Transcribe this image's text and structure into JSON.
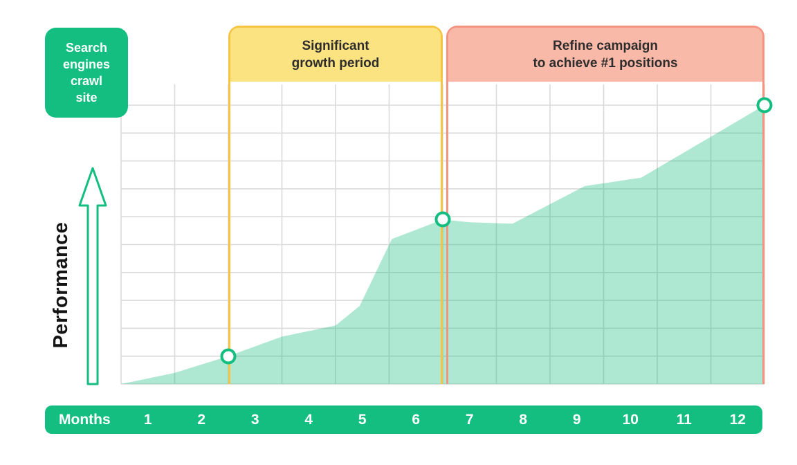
{
  "colors": {
    "green": "#14BE80",
    "grid": "#DADADA",
    "area_fill": "#17BE7E",
    "area_opacity": "0.35",
    "yellow_border": "#F6C443",
    "yellow_fill": "#FCE382",
    "red_border": "#F59380",
    "red_fill": "#F9B9A9",
    "ink": "#2D2D2D"
  },
  "badge": {
    "lines": [
      "Search",
      "engines",
      "crawl",
      "site"
    ]
  },
  "y_axis_label": "Performance",
  "months_bar": {
    "label": "Months"
  },
  "annotations": {
    "growth": {
      "line1": "Significant",
      "line2": "growth period"
    },
    "refine": {
      "line1": "Refine campaign",
      "line2": "to achieve #1 positions"
    }
  },
  "chart_data": {
    "type": "area",
    "xlabel": "Months",
    "ylabel": "Performance",
    "x_range": [
      0,
      12
    ],
    "y_range": [
      0,
      100
    ],
    "x_ticks": [
      "1",
      "2",
      "3",
      "4",
      "5",
      "6",
      "7",
      "8",
      "9",
      "10",
      "11",
      "12"
    ],
    "grid": {
      "cols": 12,
      "rows": 10,
      "visible": true
    },
    "series": [
      {
        "name": "Performance",
        "points": [
          [
            0,
            0
          ],
          [
            1,
            4
          ],
          [
            2,
            10
          ],
          [
            3,
            17
          ],
          [
            4,
            21
          ],
          [
            4.45,
            28
          ],
          [
            5.05,
            52
          ],
          [
            6,
            59
          ],
          [
            6.5,
            58
          ],
          [
            7.3,
            57.5
          ],
          [
            8.65,
            71
          ],
          [
            9.7,
            74
          ],
          [
            12,
            100
          ]
        ]
      }
    ],
    "markers": [
      {
        "x": 2,
        "y": 10
      },
      {
        "x": 6,
        "y": 59
      },
      {
        "x": 12,
        "y": 100
      }
    ],
    "annotations": [
      {
        "label": "Significant growth period",
        "x_start": 2,
        "x_end": 6,
        "style": "yellow"
      },
      {
        "label": "Refine campaign to achieve #1 positions",
        "x_start": 6,
        "x_end": 12,
        "style": "red"
      }
    ]
  }
}
